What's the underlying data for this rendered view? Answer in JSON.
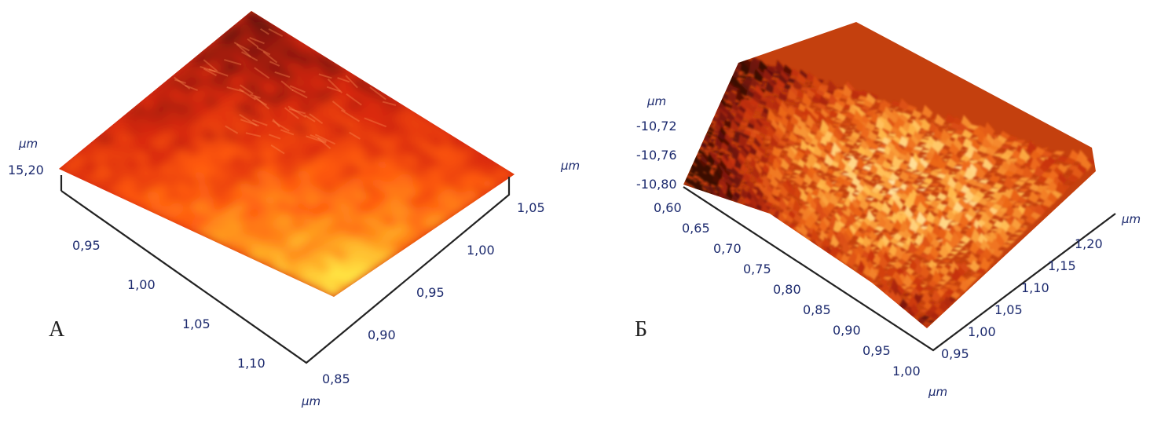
{
  "chart_data": [
    {
      "type": "heatmap",
      "panel_label": "А",
      "z_unit": "µm",
      "z_ticks": [
        "15,20"
      ],
      "x_unit": "",
      "x_ticks": [
        "0,95",
        "1,00",
        "1,05",
        "1,10"
      ],
      "y_unit": "µm",
      "y_ticks": [
        "0,85",
        "0,90",
        "0,95",
        "1,00",
        "1,05"
      ],
      "y_unit_top": "µm",
      "colormap": [
        "#3a0d06",
        "#7a1507",
        "#d82809",
        "#ff5a10",
        "#ffa020",
        "#fff24a"
      ],
      "surface": "smooth",
      "dark_corner": "top"
    },
    {
      "type": "heatmap",
      "panel_label": "Б",
      "z_unit": "µm",
      "z_ticks": [
        "-10,72",
        "-10,76",
        "-10,80"
      ],
      "x_unit": "µm",
      "x_ticks": [
        "0,60",
        "0,65",
        "0,70",
        "0,75",
        "0,80",
        "0,85",
        "0,90",
        "0,95",
        "1,00"
      ],
      "y_unit": "µm",
      "y_ticks": [
        "0,95",
        "1,00",
        "1,05",
        "1,10",
        "1,15",
        "1,20"
      ],
      "colormap": [
        "#3a0d06",
        "#7a1507",
        "#c8320c",
        "#ee6a1a",
        "#ffb84a",
        "#fff6c4"
      ],
      "surface": "rough",
      "dark_corner": "left"
    }
  ]
}
